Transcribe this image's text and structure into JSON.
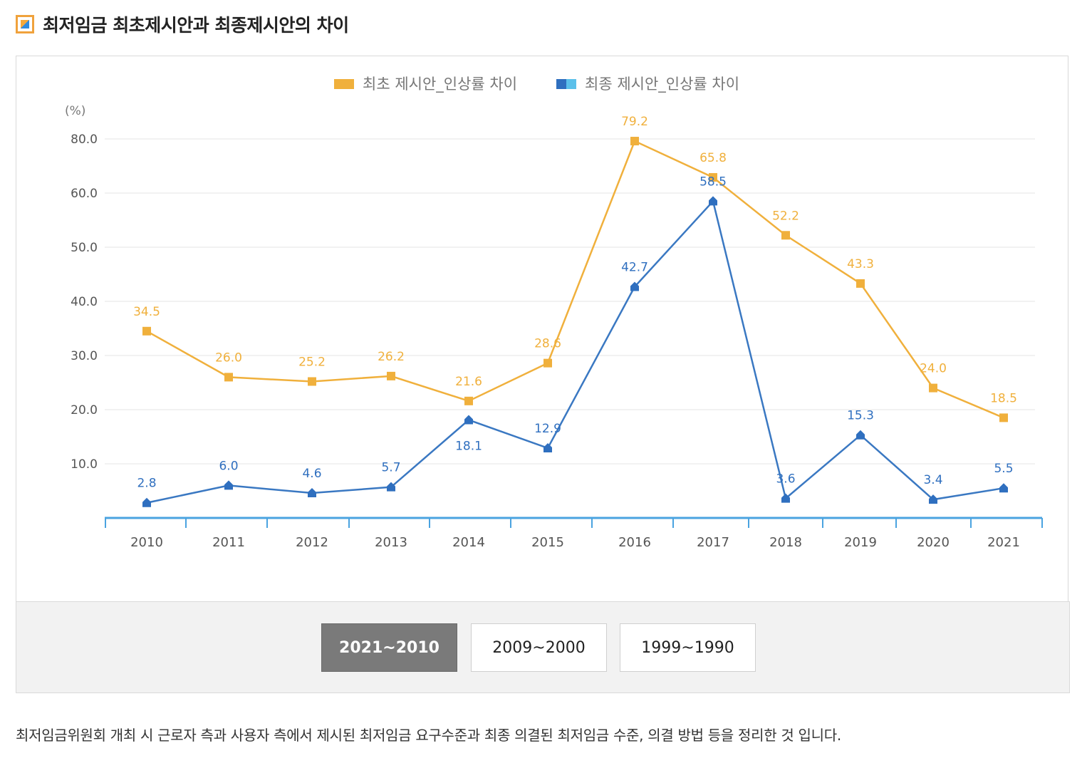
{
  "title": "최저임금 최초제시안과 최종제시안의 차이",
  "chart_data": {
    "type": "line",
    "unit_label": "(%)",
    "categories": [
      "2010",
      "2011",
      "2012",
      "2013",
      "2014",
      "2015",
      "2016",
      "2017",
      "2018",
      "2019",
      "2020",
      "2021"
    ],
    "yticks": [
      "80.0",
      "60.0",
      "50.0",
      "40.0",
      "30.0",
      "20.0",
      "10.0"
    ],
    "series": [
      {
        "name": "최초 제시안_인상률 차이",
        "color": "#f0b03c",
        "values": [
          34.5,
          26.0,
          25.2,
          26.2,
          21.6,
          28.6,
          79.2,
          65.8,
          52.2,
          43.3,
          24.0,
          18.5
        ],
        "labels": [
          "34.5",
          "26.0",
          "25.2",
          "26.2",
          "21.6",
          "28.6",
          "79.2",
          "65.8",
          "52.2",
          "43.3",
          "24.0",
          "18.5"
        ]
      },
      {
        "name": "최종 제시안_인상률 차이",
        "color": "#2f6fbf",
        "values": [
          2.8,
          6.0,
          4.6,
          5.7,
          18.1,
          12.9,
          42.7,
          58.5,
          3.6,
          15.3,
          3.4,
          5.5
        ],
        "labels": [
          "2.8",
          "6.0",
          "4.6",
          "5.7",
          "18.1",
          "12.9",
          "42.7",
          "58.5",
          "3.6",
          "15.3",
          "3.4",
          "5.5"
        ]
      }
    ]
  },
  "tabs": [
    {
      "label": "2021~2010",
      "active": true
    },
    {
      "label": "2009~2000",
      "active": false
    },
    {
      "label": "1999~1990",
      "active": false
    }
  ],
  "description": "최저임금위원회 개최 시 근로자 측과 사용자 측에서 제시된 최저임금 요구수준과 최종 의결된 최저임금 수준, 의결 방법 등을 정리한 것 입니다."
}
